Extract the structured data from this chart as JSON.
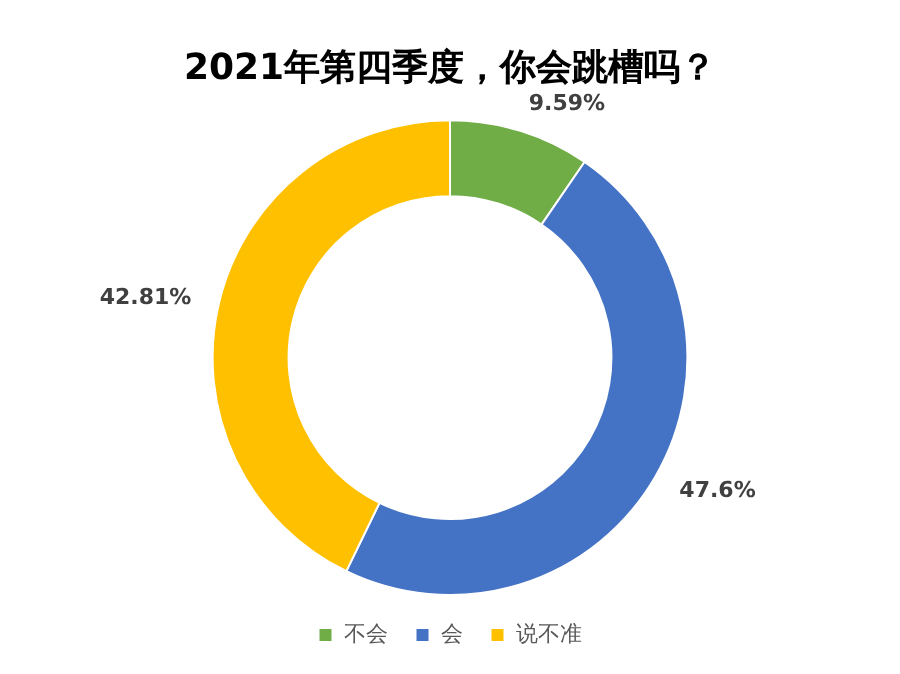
{
  "chart_data": {
    "type": "donut",
    "title": "2021年第四季度，你会跳槽吗？",
    "categories": [
      "不会",
      "会",
      "说不准"
    ],
    "values": [
      9.59,
      47.6,
      42.81
    ],
    "colors": [
      "#70ad47",
      "#4472c4",
      "#ffc000"
    ],
    "value_labels": [
      "9.59%",
      "47.6%",
      "42.81%"
    ],
    "legend": "bottom"
  }
}
